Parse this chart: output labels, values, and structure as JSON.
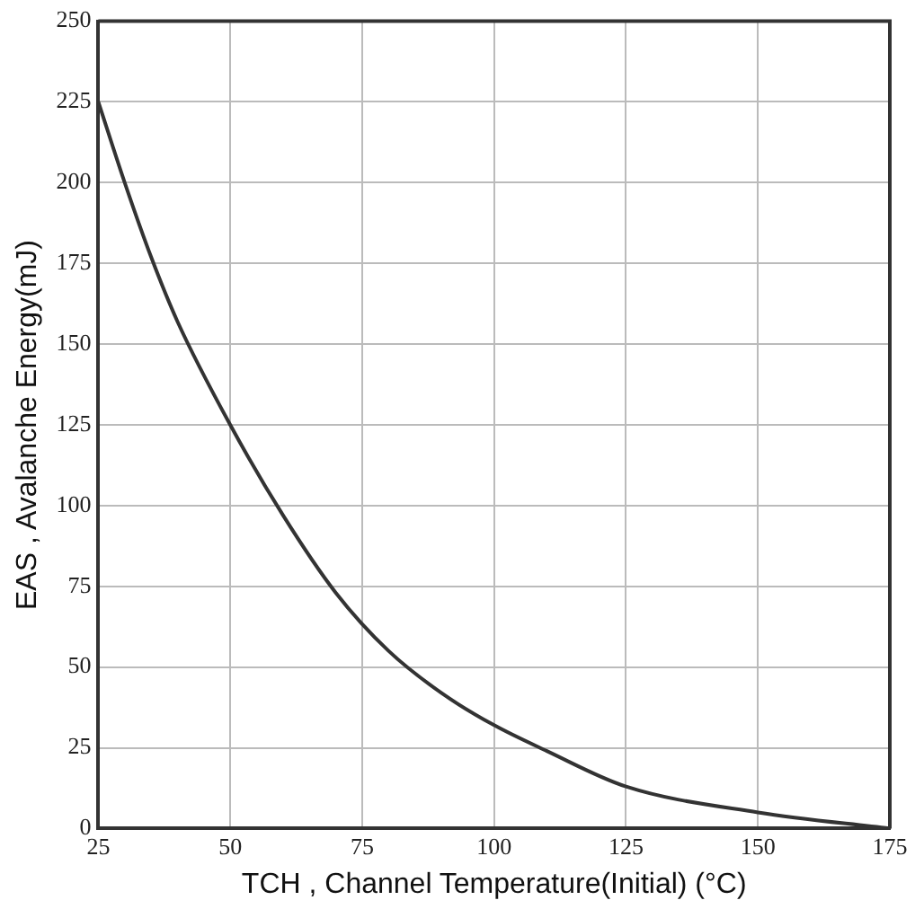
{
  "chart_data": {
    "type": "line",
    "xlabel": "TCH , Channel Temperature(Initial) (°C)",
    "ylabel": "EAS , Avalanche Energy(mJ)",
    "series": [
      {
        "color": "#333333",
        "x": [
          25,
          30,
          35,
          40,
          50,
          60,
          70,
          80,
          90,
          100,
          110,
          125,
          150,
          175
        ],
        "values": [
          225,
          200,
          177,
          157,
          125,
          97,
          73,
          55,
          42,
          32,
          24,
          13,
          5,
          0
        ]
      }
    ],
    "xlim": [
      25,
      175
    ],
    "xticks": [
      25,
      50,
      75,
      100,
      125,
      150,
      175
    ],
    "ylim": [
      0,
      250
    ],
    "yticks": [
      0,
      25,
      50,
      75,
      100,
      125,
      150,
      175,
      200,
      225,
      250
    ],
    "grid": true,
    "legend": false,
    "marker": "none",
    "line_style": "solid"
  }
}
